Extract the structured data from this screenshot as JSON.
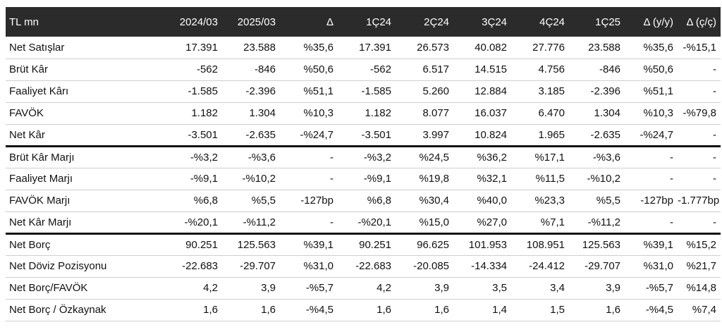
{
  "table": {
    "headers": [
      "TL mn",
      "2024/03",
      "2025/03",
      "Δ",
      "1Ç24",
      "2Ç24",
      "3Ç24",
      "4Ç24",
      "1Ç25",
      "Δ (y/y)",
      "Δ (ç/ç)"
    ],
    "groups": [
      [
        [
          "Net Satışlar",
          "17.391",
          "23.588",
          "%35,6",
          "17.391",
          "26.573",
          "40.082",
          "27.776",
          "23.588",
          "%35,6",
          "-%15,1"
        ],
        [
          "Brüt Kâr",
          "-562",
          "-846",
          "%50,6",
          "-562",
          "6.517",
          "14.515",
          "4.756",
          "-846",
          "%50,6",
          "-"
        ],
        [
          "Faaliyet Kârı",
          "-1.585",
          "-2.396",
          "%51,1",
          "-1.585",
          "5.260",
          "12.884",
          "3.185",
          "-2.396",
          "%51,1",
          "-"
        ],
        [
          "FAVÖK",
          "1.182",
          "1.304",
          "%10,3",
          "1.182",
          "8.077",
          "16.037",
          "6.470",
          "1.304",
          "%10,3",
          "-%79,8"
        ],
        [
          "Net Kâr",
          "-3.501",
          "-2.635",
          "-%24,7",
          "-3.501",
          "3.997",
          "10.824",
          "1.965",
          "-2.635",
          "-%24,7",
          "-"
        ]
      ],
      [
        [
          "Brüt Kâr Marjı",
          "-%3,2",
          "-%3,6",
          "-",
          "-%3,2",
          "%24,5",
          "%36,2",
          "%17,1",
          "-%3,6",
          "-",
          "-"
        ],
        [
          "Faaliyet Marjı",
          "-%9,1",
          "-%10,2",
          "-",
          "-%9,1",
          "%19,8",
          "%32,1",
          "%11,5",
          "-%10,2",
          "-",
          "-"
        ],
        [
          "FAVÖK Marjı",
          "%6,8",
          "%5,5",
          "-127bp",
          "%6,8",
          "%30,4",
          "%40,0",
          "%23,3",
          "%5,5",
          "-127bp",
          "-1.777bp"
        ],
        [
          "Net Kâr Marjı",
          "-%20,1",
          "-%11,2",
          "-",
          "-%20,1",
          "%15,0",
          "%27,0",
          "%7,1",
          "-%11,2",
          "-",
          "-"
        ]
      ],
      [
        [
          "Net Borç",
          "90.251",
          "125.563",
          "%39,1",
          "90.251",
          "96.625",
          "101.953",
          "108.951",
          "125.563",
          "%39,1",
          "%15,2"
        ],
        [
          "Net Döviz Pozisyonu",
          "-22.683",
          "-29.707",
          "%31,0",
          "-22.683",
          "-20.085",
          "-14.334",
          "-24.412",
          "-29.707",
          "%31,0",
          "%21,7"
        ],
        [
          "Net Borç/FAVÖK",
          "4,2",
          "3,9",
          "-%5,7",
          "4,2",
          "3,9",
          "3,5",
          "3,4",
          "3,9",
          "-%5,7",
          "%14,8"
        ],
        [
          "Net Borç / Özkaynak",
          "1,6",
          "1,6",
          "-%4,5",
          "1,6",
          "1,6",
          "1,4",
          "1,5",
          "1,6",
          "-%4,5",
          "%7,4"
        ]
      ]
    ]
  }
}
